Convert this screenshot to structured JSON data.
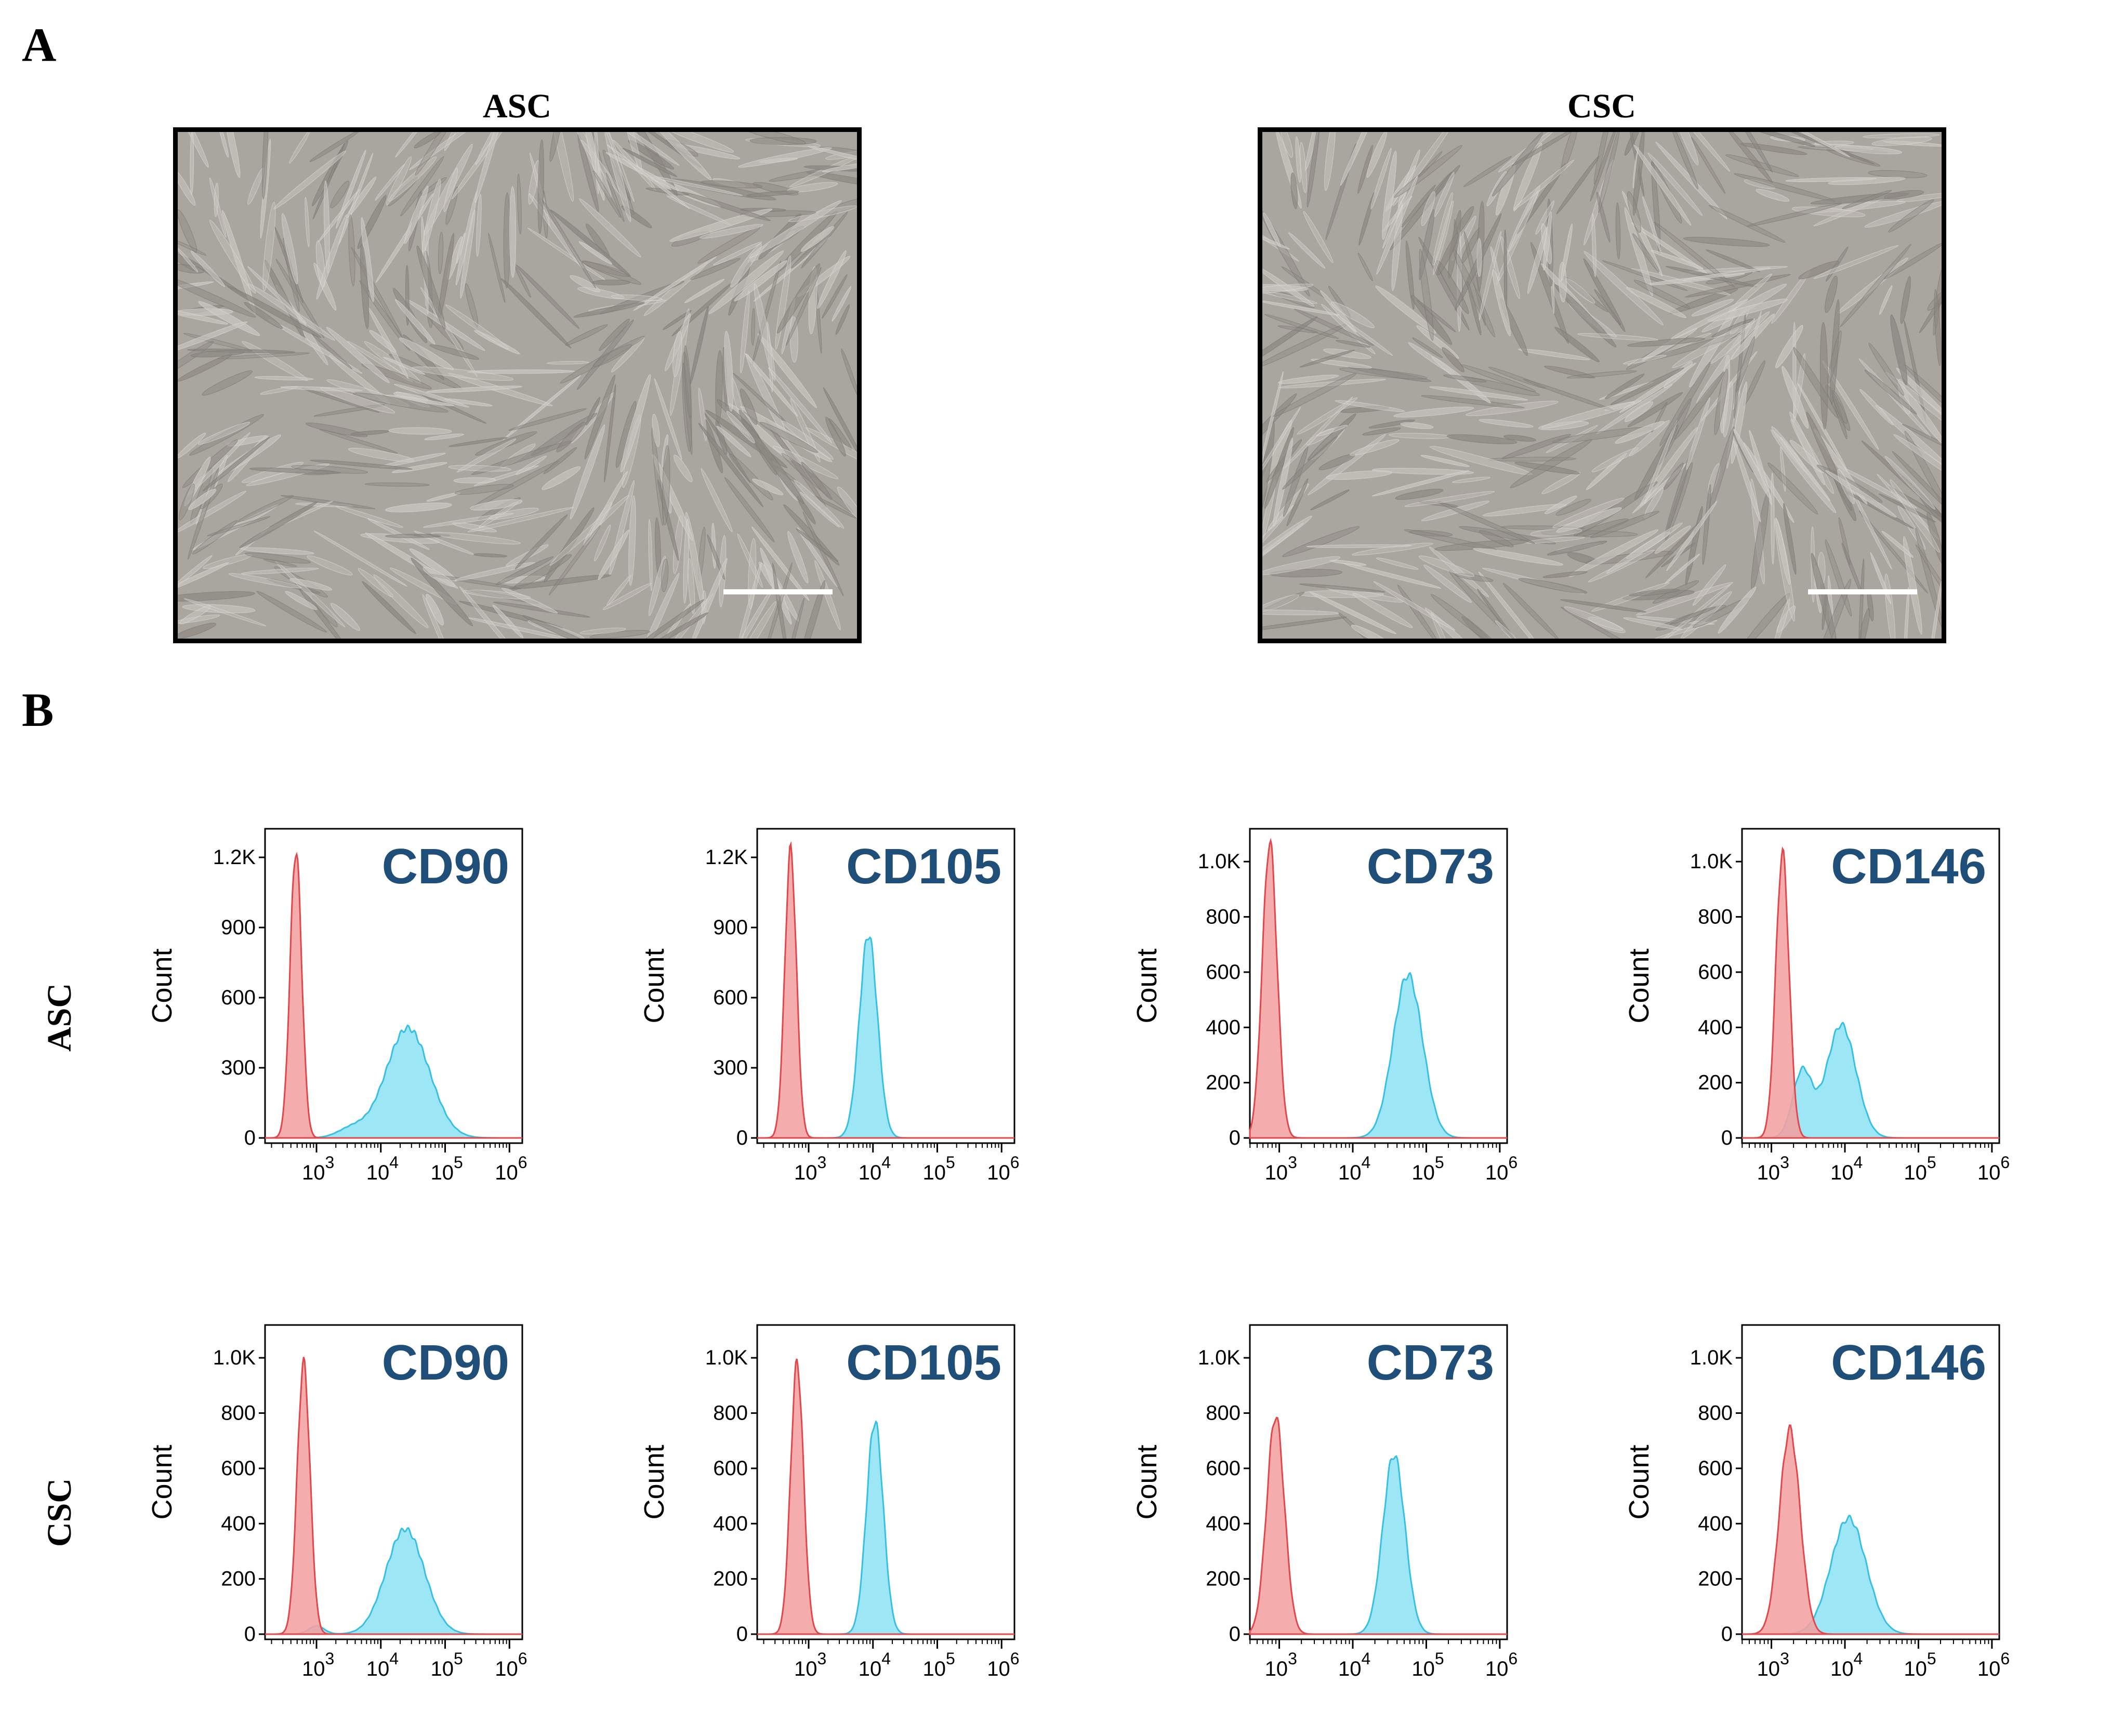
{
  "panels": {
    "a_label": "A",
    "b_label": "B"
  },
  "micrographs": [
    {
      "title": "ASC"
    },
    {
      "title": "CSC"
    }
  ],
  "row_labels": [
    "ASC",
    "CSC"
  ],
  "colors": {
    "control_fill": "#f4a0a0",
    "control_line": "#e0484c",
    "marker_fill": "#9ce6f6",
    "marker_line": "#38c0e4",
    "marker_title": "#1f4e79",
    "overlap_fill": "#b0a8c8"
  },
  "chart_data": [
    {
      "type": "area",
      "row": "ASC",
      "marker": "CD90",
      "ylabel": "Count",
      "yticks": [
        "0",
        "300",
        "600",
        "900",
        "1.2K"
      ],
      "ytick_values": [
        0,
        300,
        600,
        900,
        1200
      ],
      "ylim": [
        0,
        1300
      ],
      "xscale": "log",
      "xlim": [
        2.2,
        6.2
      ],
      "xticks": [
        {
          "base": "10",
          "exp": "3",
          "value": 3
        },
        {
          "base": "10",
          "exp": "4",
          "value": 4
        },
        {
          "base": "10",
          "exp": "5",
          "value": 5
        },
        {
          "base": "10",
          "exp": "6",
          "value": 6
        }
      ],
      "series": [
        {
          "name": "control",
          "center": 2.68,
          "width": 0.09,
          "peak": 1230
        },
        {
          "name": "marker",
          "center": 4.42,
          "width": 0.34,
          "peak": 470,
          "shoulder": {
            "center": 3.55,
            "width": 0.22,
            "peak": 40
          }
        }
      ]
    },
    {
      "type": "area",
      "row": "ASC",
      "marker": "CD105",
      "ylabel": "Count",
      "yticks": [
        "0",
        "300",
        "600",
        "900",
        "1.2K"
      ],
      "ytick_values": [
        0,
        300,
        600,
        900,
        1200
      ],
      "ylim": [
        0,
        1300
      ],
      "xscale": "log",
      "xlim": [
        2.2,
        6.2
      ],
      "xticks": [
        {
          "base": "10",
          "exp": "3",
          "value": 3
        },
        {
          "base": "10",
          "exp": "4",
          "value": 4
        },
        {
          "base": "10",
          "exp": "5",
          "value": 5
        },
        {
          "base": "10",
          "exp": "6",
          "value": 6
        }
      ],
      "series": [
        {
          "name": "control",
          "center": 2.72,
          "width": 0.09,
          "peak": 1230
        },
        {
          "name": "marker",
          "center": 3.93,
          "width": 0.14,
          "peak": 870
        }
      ]
    },
    {
      "type": "area",
      "row": "ASC",
      "marker": "CD73",
      "ylabel": "Count",
      "yticks": [
        "0",
        "200",
        "400",
        "600",
        "800",
        "1.0K"
      ],
      "ytick_values": [
        0,
        200,
        400,
        600,
        800,
        1000
      ],
      "ylim": [
        0,
        1100
      ],
      "xscale": "log",
      "xlim": [
        2.6,
        6.1
      ],
      "xticks": [
        {
          "base": "10",
          "exp": "3",
          "value": 3
        },
        {
          "base": "10",
          "exp": "4",
          "value": 4
        },
        {
          "base": "10",
          "exp": "5",
          "value": 5
        },
        {
          "base": "10",
          "exp": "6",
          "value": 6
        }
      ],
      "series": [
        {
          "name": "control",
          "center": 2.87,
          "width": 0.1,
          "peak": 1070
        },
        {
          "name": "marker",
          "center": 4.75,
          "width": 0.2,
          "peak": 590
        }
      ]
    },
    {
      "type": "area",
      "row": "ASC",
      "marker": "CD146",
      "ylabel": "Count",
      "yticks": [
        "0",
        "200",
        "400",
        "600",
        "800",
        "1.0K"
      ],
      "ytick_values": [
        0,
        200,
        400,
        600,
        800,
        1000
      ],
      "ylim": [
        0,
        1100
      ],
      "xscale": "log",
      "xlim": [
        2.6,
        6.1
      ],
      "xticks": [
        {
          "base": "10",
          "exp": "3",
          "value": 3
        },
        {
          "base": "10",
          "exp": "4",
          "value": 4
        },
        {
          "base": "10",
          "exp": "5",
          "value": 5
        },
        {
          "base": "10",
          "exp": "6",
          "value": 6
        }
      ],
      "series": [
        {
          "name": "control",
          "center": 3.15,
          "width": 0.09,
          "peak": 1030
        },
        {
          "name": "marker",
          "center": 3.95,
          "width": 0.2,
          "peak": 410,
          "shoulder": {
            "center": 3.42,
            "width": 0.13,
            "peak": 240
          }
        }
      ]
    },
    {
      "type": "area",
      "row": "CSC",
      "marker": "CD90",
      "ylabel": "Count",
      "yticks": [
        "0",
        "200",
        "400",
        "600",
        "800",
        "1.0K"
      ],
      "ytick_values": [
        0,
        200,
        400,
        600,
        800,
        1000
      ],
      "ylim": [
        0,
        1100
      ],
      "xscale": "log",
      "xlim": [
        2.2,
        6.2
      ],
      "xticks": [
        {
          "base": "10",
          "exp": "3",
          "value": 3
        },
        {
          "base": "10",
          "exp": "4",
          "value": 4
        },
        {
          "base": "10",
          "exp": "5",
          "value": 5
        },
        {
          "base": "10",
          "exp": "6",
          "value": 6
        }
      ],
      "series": [
        {
          "name": "control",
          "center": 2.8,
          "width": 0.1,
          "peak": 980
        },
        {
          "name": "marker",
          "center": 4.38,
          "width": 0.3,
          "peak": 380,
          "shoulder": {
            "center": 3.0,
            "width": 0.12,
            "peak": 30
          }
        }
      ]
    },
    {
      "type": "area",
      "row": "CSC",
      "marker": "CD105",
      "ylabel": "Count",
      "yticks": [
        "0",
        "200",
        "400",
        "600",
        "800",
        "1.0K"
      ],
      "ytick_values": [
        0,
        200,
        400,
        600,
        800,
        1000
      ],
      "ylim": [
        0,
        1100
      ],
      "xscale": "log",
      "xlim": [
        2.2,
        6.2
      ],
      "xticks": [
        {
          "base": "10",
          "exp": "3",
          "value": 3
        },
        {
          "base": "10",
          "exp": "4",
          "value": 4
        },
        {
          "base": "10",
          "exp": "5",
          "value": 5
        },
        {
          "base": "10",
          "exp": "6",
          "value": 6
        }
      ],
      "series": [
        {
          "name": "control",
          "center": 2.82,
          "width": 0.1,
          "peak": 980
        },
        {
          "name": "marker",
          "center": 4.03,
          "width": 0.13,
          "peak": 770
        }
      ]
    },
    {
      "type": "area",
      "row": "CSC",
      "marker": "CD73",
      "ylabel": "Count",
      "yticks": [
        "0",
        "200",
        "400",
        "600",
        "800",
        "1.0K"
      ],
      "ytick_values": [
        0,
        200,
        400,
        600,
        800,
        1000
      ],
      "ylim": [
        0,
        1100
      ],
      "xscale": "log",
      "xlim": [
        2.6,
        6.1
      ],
      "xticks": [
        {
          "base": "10",
          "exp": "3",
          "value": 3
        },
        {
          "base": "10",
          "exp": "4",
          "value": 4
        },
        {
          "base": "10",
          "exp": "5",
          "value": 5
        },
        {
          "base": "10",
          "exp": "6",
          "value": 6
        }
      ],
      "series": [
        {
          "name": "control",
          "center": 2.95,
          "width": 0.12,
          "peak": 790
        },
        {
          "name": "marker",
          "center": 4.56,
          "width": 0.15,
          "peak": 650
        }
      ]
    },
    {
      "type": "area",
      "row": "CSC",
      "marker": "CD146",
      "ylabel": "Count",
      "yticks": [
        "0",
        "200",
        "400",
        "600",
        "800",
        "1.0K"
      ],
      "ytick_values": [
        0,
        200,
        400,
        600,
        800,
        1000
      ],
      "ylim": [
        0,
        1100
      ],
      "xscale": "log",
      "xlim": [
        2.6,
        6.1
      ],
      "xticks": [
        {
          "base": "10",
          "exp": "3",
          "value": 3
        },
        {
          "base": "10",
          "exp": "4",
          "value": 4
        },
        {
          "base": "10",
          "exp": "5",
          "value": 5
        },
        {
          "base": "10",
          "exp": "6",
          "value": 6
        }
      ],
      "series": [
        {
          "name": "control",
          "center": 3.25,
          "width": 0.14,
          "peak": 740
        },
        {
          "name": "marker",
          "center": 4.05,
          "width": 0.24,
          "peak": 420
        }
      ]
    }
  ]
}
